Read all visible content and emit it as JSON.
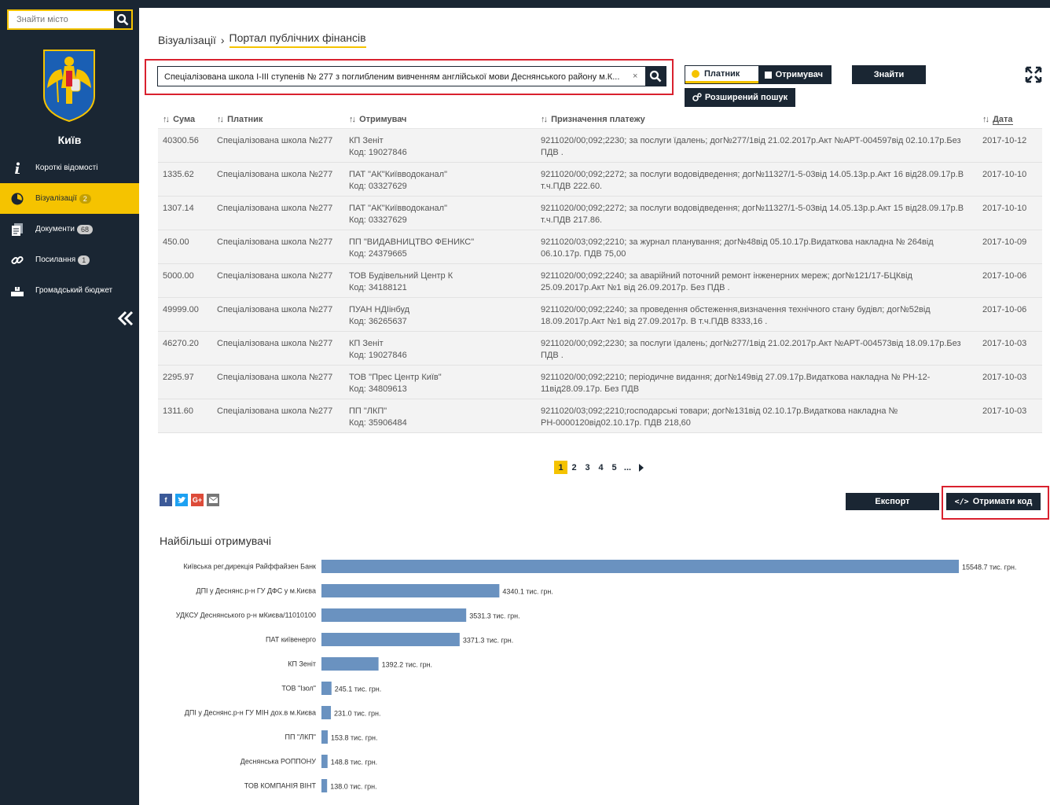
{
  "sidebar": {
    "city_search_placeholder": "Знайти місто",
    "city_name": "Київ",
    "nav": [
      {
        "label": "Короткі відомості",
        "badge": "",
        "icon": "info-icon"
      },
      {
        "label": "Візуалізації",
        "badge": "2",
        "icon": "chart-pie-icon"
      },
      {
        "label": "Документи",
        "badge": "68",
        "icon": "documents-icon"
      },
      {
        "label": "Посилання",
        "badge": "1",
        "icon": "link-icon"
      },
      {
        "label": "Громадський бюджет",
        "badge": "",
        "icon": "budget-icon"
      }
    ]
  },
  "breadcrumb": {
    "root": "Візуалізації",
    "current": "Портал публічних фінансів"
  },
  "search": {
    "value": "Спеціалізована школа І-ІІІ ступенів № 277 з поглибленим вивченням англійської мови Деснянського району м.К...",
    "clear": "×"
  },
  "toggle": {
    "payer": "Платник",
    "recipient": "Отримувач"
  },
  "buttons": {
    "find": "Знайти",
    "advanced": "Розширений пошук",
    "export": "Експорт",
    "get_code": "Отримати код"
  },
  "table": {
    "headers": {
      "sum": "Сума",
      "payer": "Платник",
      "recipient": "Отримувач",
      "purpose": "Призначення платежу",
      "date": "Дата"
    },
    "rows": [
      {
        "sum": "40300.56",
        "payer": "Спеціалізована школа №277",
        "recipient": "КП Зеніт",
        "code": "Код: 19027846",
        "purpose": "9211020/00;092;2230; за послуги їдалень; дог№277/1від 21.02.2017р.Акт №АРТ-004597від 02.10.17р.Без ПДВ .",
        "date": "2017-10-12"
      },
      {
        "sum": "1335.62",
        "payer": "Спеціалізована школа №277",
        "recipient": "ПАТ \"АК\"Київводоканал\"",
        "code": "Код: 03327629",
        "purpose": "9211020/00;092;2272; за послуги водовідведення; дог№11327/1-5-03від 14.05.13р.р.Акт 16 від28.09.17р.В т.ч.ПДВ 222.60.",
        "date": "2017-10-10"
      },
      {
        "sum": "1307.14",
        "payer": "Спеціалізована школа №277",
        "recipient": "ПАТ \"АК\"Київводоканал\"",
        "code": "Код: 03327629",
        "purpose": "9211020/00;092;2272; за послуги водовідведення; дог№11327/1-5-03від 14.05.13р.р.Акт 15 від28.09.17р.В т.ч.ПДВ 217.86.",
        "date": "2017-10-10"
      },
      {
        "sum": "450.00",
        "payer": "Спеціалізована школа №277",
        "recipient": "ПП \"ВИДАВНИЦТВО ФЕНИКС\"",
        "code": "Код: 24379665",
        "purpose": "9211020/03;092;2210; за журнал планування; дог№48від 05.10.17р.Видаткова накладна № 264від 06.10.17р. ПДВ 75,00",
        "date": "2017-10-09"
      },
      {
        "sum": "5000.00",
        "payer": "Спеціалізована школа №277",
        "recipient": "ТОВ Будівельний Центр К",
        "code": "Код: 34188121",
        "purpose": "9211020/00;092;2240; за аварійний поточний ремонт інженерних мереж; дог№121/17-БЦКвід 25.09.2017р.Акт №1 від 26.09.2017р. Без ПДВ .",
        "date": "2017-10-06"
      },
      {
        "sum": "49999.00",
        "payer": "Спеціалізована школа №277",
        "recipient": "ПУАН НДІінбуд",
        "code": "Код: 36265637",
        "purpose": "9211020/00;092;2240; за проведення обстеження,визначення технічного стану будівл; дог№52від 18.09.2017р.Акт №1 від 27.09.2017р. В т.ч.ПДВ 8333,16 .",
        "date": "2017-10-06"
      },
      {
        "sum": "46270.20",
        "payer": "Спеціалізована школа №277",
        "recipient": "КП Зеніт",
        "code": "Код: 19027846",
        "purpose": "9211020/00;092;2230; за послуги їдалень; дог№277/1від 21.02.2017р.Акт №АРТ-004573від 18.09.17р.Без ПДВ .",
        "date": "2017-10-03"
      },
      {
        "sum": "2295.97",
        "payer": "Спеціалізована школа №277",
        "recipient": "ТОВ \"Прес Центр Київ\"",
        "code": "Код: 34809613",
        "purpose": "9211020/00;092;2210; періодичне видання; дог№149від 27.09.17р.Видаткова накладна № РН-12-11від28.09.17р. Без ПДВ",
        "date": "2017-10-03"
      },
      {
        "sum": "1311.60",
        "payer": "Спеціалізована школа №277",
        "recipient": "ПП \"ЛКП\"",
        "code": "Код: 35906484",
        "purpose": "9211020/03;092;2210;господарські товари; дог№131від 02.10.17р.Видаткова накладна № РН-0000120від02.10.17р. ПДВ 218,60",
        "date": "2017-10-03"
      }
    ]
  },
  "pagination": {
    "pages": [
      "1",
      "2",
      "3",
      "4",
      "5",
      "..."
    ],
    "active": "1"
  },
  "social": [
    "facebook-icon",
    "twitter-icon",
    "google-plus-icon",
    "email-icon"
  ],
  "chart_data": {
    "type": "bar",
    "orientation": "horizontal",
    "title": "Найбільші отримувачі",
    "unit": "тис. грн.",
    "color": "#6a92c0",
    "categories": [
      "Київська рег.дирекція Райффайзен Банк",
      "ДПІ у Деснянс.р-н ГУ ДФС у м.Києва",
      "УДКСУ Деснянського р-н мКиєва/11010100",
      "ПАТ київенерго",
      "КП Зеніт",
      "ТОВ \"Ізол\"",
      "ДПІ у Деснянс.р-н ГУ МІН дох.в м.Києва",
      "ПП \"ЛКП\"",
      "Деснянська РОППОНУ",
      "ТОВ КОМПАНІЯ ВІНТ"
    ],
    "values": [
      15548.7,
      4340.1,
      3531.3,
      3371.3,
      1392.2,
      245.1,
      231.0,
      153.8,
      148.8,
      138.0
    ],
    "value_labels": [
      "15548.7 тис. грн.",
      "4340.1 тис. грн.",
      "3531.3 тис. грн.",
      "3371.3 тис. грн.",
      "1392.2 тис. грн.",
      "245.1 тис. грн.",
      "231.0 тис. грн.",
      "153.8 тис. грн.",
      "148.8 тис. грн.",
      "138.0 тис. грн."
    ]
  }
}
